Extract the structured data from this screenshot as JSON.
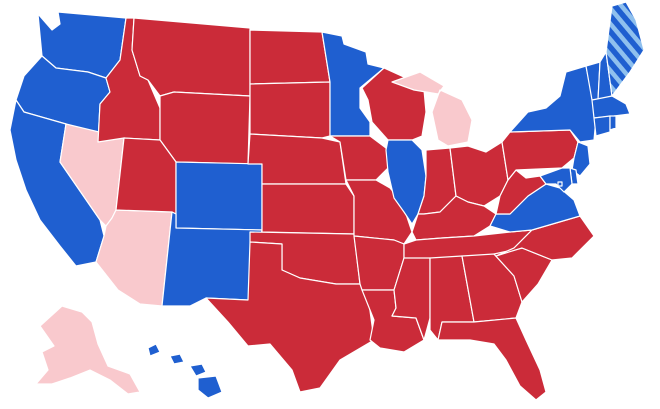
{
  "map": {
    "kind": "us-states-choropleth",
    "legend": null,
    "colors": {
      "dem_solid": "#1f5fd0",
      "dem_lean": "#8fc0ee",
      "rep_solid": "#cb2b39",
      "rep_lean": "#f9c9cd",
      "border": "#ffffff",
      "background": "#ffffff"
    },
    "states": [
      {
        "id": "WA",
        "category": "dem_solid"
      },
      {
        "id": "OR",
        "category": "dem_solid"
      },
      {
        "id": "CA",
        "category": "dem_solid"
      },
      {
        "id": "NV",
        "category": "rep_lean"
      },
      {
        "id": "AZ",
        "category": "rep_lean"
      },
      {
        "id": "ID",
        "category": "rep_solid"
      },
      {
        "id": "MT",
        "category": "rep_solid"
      },
      {
        "id": "WY",
        "category": "rep_solid"
      },
      {
        "id": "UT",
        "category": "rep_solid"
      },
      {
        "id": "CO",
        "category": "dem_solid"
      },
      {
        "id": "NM",
        "category": "dem_solid"
      },
      {
        "id": "ND",
        "category": "rep_solid"
      },
      {
        "id": "SD",
        "category": "rep_solid"
      },
      {
        "id": "NE",
        "category": "rep_solid"
      },
      {
        "id": "KS",
        "category": "rep_solid"
      },
      {
        "id": "OK",
        "category": "rep_solid"
      },
      {
        "id": "TX",
        "category": "rep_solid"
      },
      {
        "id": "MN",
        "category": "dem_solid"
      },
      {
        "id": "IA",
        "category": "rep_solid"
      },
      {
        "id": "MO",
        "category": "rep_solid"
      },
      {
        "id": "AR",
        "category": "rep_solid"
      },
      {
        "id": "LA",
        "category": "rep_solid"
      },
      {
        "id": "WI",
        "category": "rep_solid"
      },
      {
        "id": "IL",
        "category": "dem_solid"
      },
      {
        "id": "MI",
        "category": "rep_lean"
      },
      {
        "id": "IN",
        "category": "rep_solid"
      },
      {
        "id": "OH",
        "category": "rep_solid"
      },
      {
        "id": "KY",
        "category": "rep_solid"
      },
      {
        "id": "TN",
        "category": "rep_solid"
      },
      {
        "id": "MS",
        "category": "rep_solid"
      },
      {
        "id": "AL",
        "category": "rep_solid"
      },
      {
        "id": "GA",
        "category": "rep_solid"
      },
      {
        "id": "FL",
        "category": "rep_solid"
      },
      {
        "id": "SC",
        "category": "rep_solid"
      },
      {
        "id": "NC",
        "category": "rep_solid"
      },
      {
        "id": "VA",
        "category": "dem_solid"
      },
      {
        "id": "WV",
        "category": "rep_solid"
      },
      {
        "id": "PA",
        "category": "rep_solid"
      },
      {
        "id": "NY",
        "category": "dem_solid"
      },
      {
        "id": "VT",
        "category": "dem_solid"
      },
      {
        "id": "NH",
        "category": "dem_solid"
      },
      {
        "id": "MA",
        "category": "dem_solid"
      },
      {
        "id": "CT",
        "category": "dem_solid"
      },
      {
        "id": "RI",
        "category": "dem_solid"
      },
      {
        "id": "NJ",
        "category": "dem_solid"
      },
      {
        "id": "DE",
        "category": "dem_solid"
      },
      {
        "id": "MD",
        "category": "dem_solid"
      },
      {
        "id": "DC",
        "category": "dem_solid"
      },
      {
        "id": "ME",
        "category": "dem_split_striped"
      },
      {
        "id": "AK",
        "category": "rep_lean"
      },
      {
        "id": "HI",
        "category": "dem_solid"
      }
    ]
  }
}
